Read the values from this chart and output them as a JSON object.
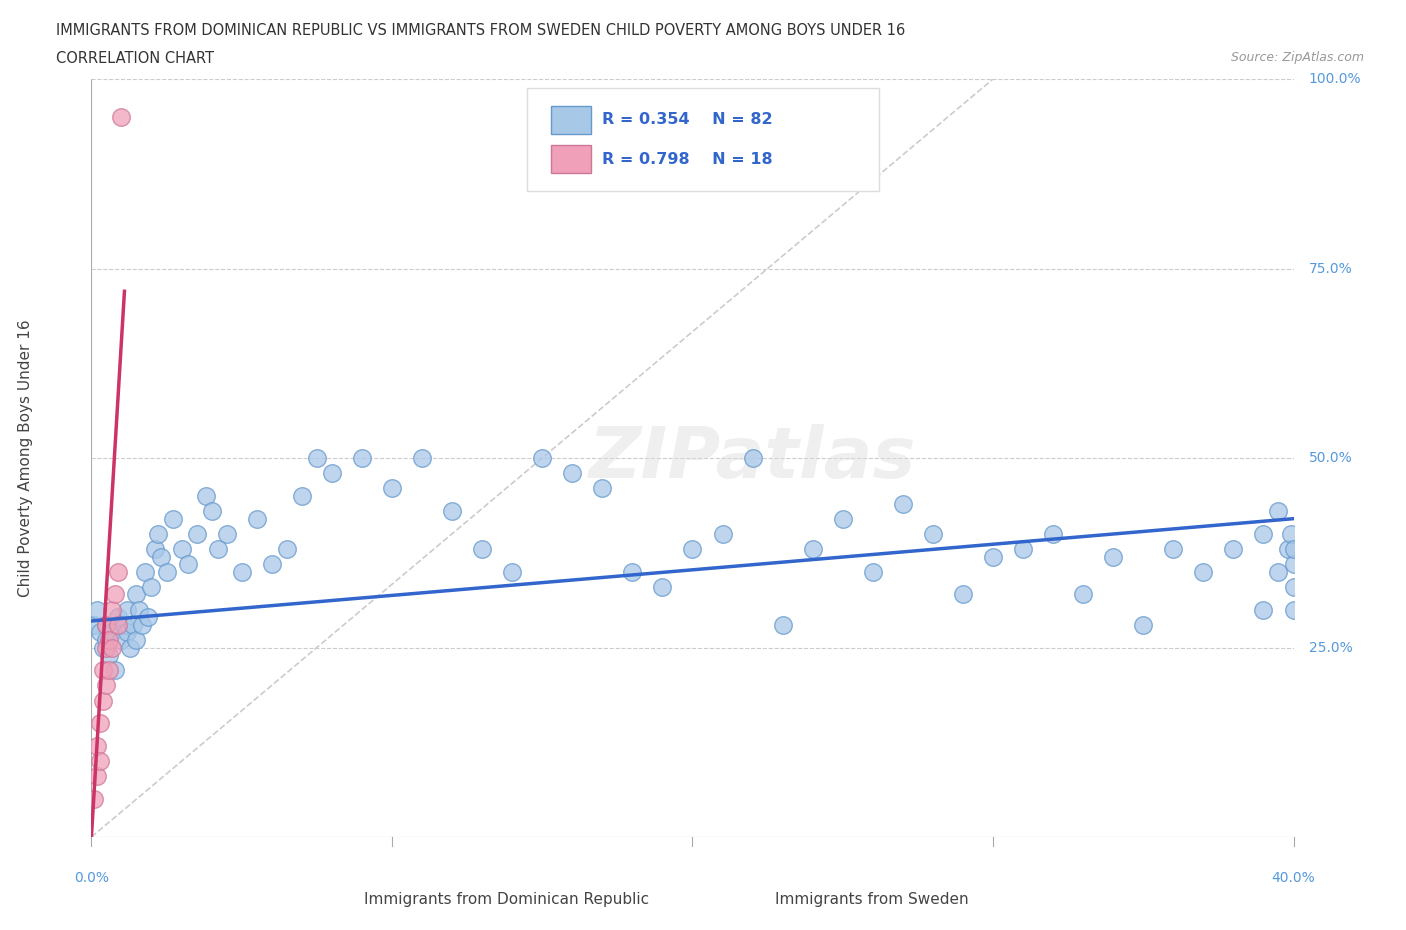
{
  "title": "IMMIGRANTS FROM DOMINICAN REPUBLIC VS IMMIGRANTS FROM SWEDEN CHILD POVERTY AMONG BOYS UNDER 16",
  "subtitle": "CORRELATION CHART",
  "source": "Source: ZipAtlas.com",
  "xlabel_bottom": "Immigrants from Dominican Republic",
  "xlabel2_bottom": "Immigrants from Sweden",
  "ylabel": "Child Poverty Among Boys Under 16",
  "xmin": 0.0,
  "xmax": 0.4,
  "ymin": 0.0,
  "ymax": 1.0,
  "blue_color": "#A8C8E8",
  "blue_edge_color": "#6699CC",
  "pink_color": "#F0A0B8",
  "pink_edge_color": "#CC7799",
  "blue_line_color": "#3366CC",
  "pink_line_color": "#CC3366",
  "trend_gray_color": "#CCCCCC",
  "watermark": "ZIPatlas",
  "blue_scatter_x": [
    0.001,
    0.002,
    0.003,
    0.004,
    0.005,
    0.005,
    0.006,
    0.007,
    0.008,
    0.009,
    0.01,
    0.011,
    0.012,
    0.012,
    0.013,
    0.014,
    0.015,
    0.015,
    0.016,
    0.017,
    0.018,
    0.019,
    0.02,
    0.021,
    0.022,
    0.023,
    0.025,
    0.027,
    0.03,
    0.032,
    0.035,
    0.038,
    0.04,
    0.042,
    0.045,
    0.05,
    0.055,
    0.06,
    0.065,
    0.07,
    0.075,
    0.08,
    0.09,
    0.1,
    0.11,
    0.12,
    0.13,
    0.14,
    0.15,
    0.16,
    0.17,
    0.18,
    0.19,
    0.2,
    0.21,
    0.22,
    0.23,
    0.24,
    0.25,
    0.26,
    0.27,
    0.28,
    0.29,
    0.3,
    0.31,
    0.32,
    0.33,
    0.34,
    0.35,
    0.36,
    0.37,
    0.38,
    0.39,
    0.39,
    0.395,
    0.395,
    0.398,
    0.399,
    0.4,
    0.4,
    0.4,
    0.4
  ],
  "blue_scatter_y": [
    0.28,
    0.3,
    0.27,
    0.25,
    0.28,
    0.26,
    0.24,
    0.27,
    0.22,
    0.29,
    0.26,
    0.28,
    0.3,
    0.27,
    0.25,
    0.28,
    0.32,
    0.26,
    0.3,
    0.28,
    0.35,
    0.29,
    0.33,
    0.38,
    0.4,
    0.37,
    0.35,
    0.42,
    0.38,
    0.36,
    0.4,
    0.45,
    0.43,
    0.38,
    0.4,
    0.35,
    0.42,
    0.36,
    0.38,
    0.45,
    0.5,
    0.48,
    0.5,
    0.46,
    0.5,
    0.43,
    0.38,
    0.35,
    0.5,
    0.48,
    0.46,
    0.35,
    0.33,
    0.38,
    0.4,
    0.5,
    0.28,
    0.38,
    0.42,
    0.35,
    0.44,
    0.4,
    0.32,
    0.37,
    0.38,
    0.4,
    0.32,
    0.37,
    0.28,
    0.38,
    0.35,
    0.38,
    0.3,
    0.4,
    0.43,
    0.35,
    0.38,
    0.4,
    0.36,
    0.38,
    0.3,
    0.33
  ],
  "pink_scatter_x": [
    0.001,
    0.002,
    0.002,
    0.003,
    0.003,
    0.004,
    0.004,
    0.005,
    0.005,
    0.005,
    0.006,
    0.006,
    0.007,
    0.007,
    0.008,
    0.009,
    0.009,
    0.01
  ],
  "pink_scatter_y": [
    0.05,
    0.08,
    0.12,
    0.1,
    0.15,
    0.18,
    0.22,
    0.2,
    0.25,
    0.28,
    0.22,
    0.26,
    0.25,
    0.3,
    0.32,
    0.28,
    0.35,
    0.95
  ],
  "blue_trend_x0": 0.0,
  "blue_trend_y0": 0.285,
  "blue_trend_x1": 0.4,
  "blue_trend_y1": 0.42,
  "pink_trend_x0": 0.0,
  "pink_trend_y0": 0.0,
  "pink_trend_x1": 0.011,
  "pink_trend_y1": 0.72,
  "gray_trend_x0": 0.0,
  "gray_trend_y0": 0.0,
  "gray_trend_x1": 0.3,
  "gray_trend_y1": 1.0
}
